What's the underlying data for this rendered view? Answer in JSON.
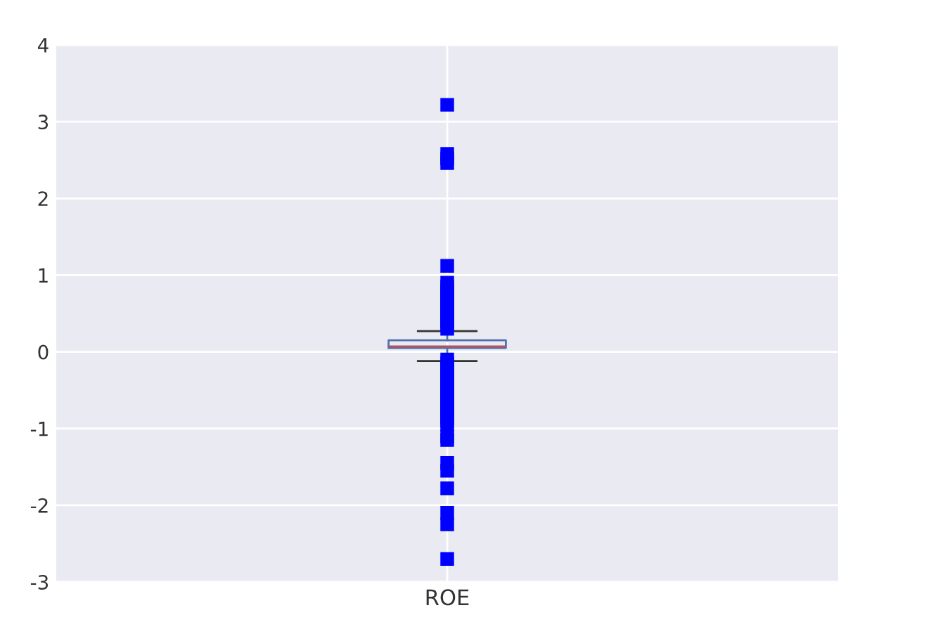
{
  "chart_data": {
    "type": "box",
    "categories": [
      "ROE"
    ],
    "boxes": [
      {
        "low": -0.12,
        "q1": 0.05,
        "median": 0.07,
        "q3": 0.15,
        "high": 0.27,
        "outliers": [
          3.22,
          2.58,
          2.52,
          2.46,
          1.12,
          0.9,
          0.85,
          0.8,
          0.75,
          0.7,
          0.65,
          0.6,
          0.55,
          0.5,
          0.45,
          0.4,
          0.35,
          0.3,
          -0.1,
          -0.15,
          -0.2,
          -0.25,
          -0.3,
          -0.35,
          -0.4,
          -0.45,
          -0.5,
          -0.55,
          -0.6,
          -0.65,
          -0.7,
          -0.75,
          -0.8,
          -0.85,
          -0.9,
          -0.95,
          -1.1,
          -1.15,
          -1.45,
          -1.55,
          -1.78,
          -2.1,
          -2.25,
          -2.7
        ]
      }
    ],
    "color": "#4c72b0",
    "marker": "square",
    "ylim": [
      -3,
      4
    ],
    "yticks": [
      -3,
      -2,
      -1,
      0,
      1,
      2,
      3,
      4
    ],
    "grid": true
  }
}
